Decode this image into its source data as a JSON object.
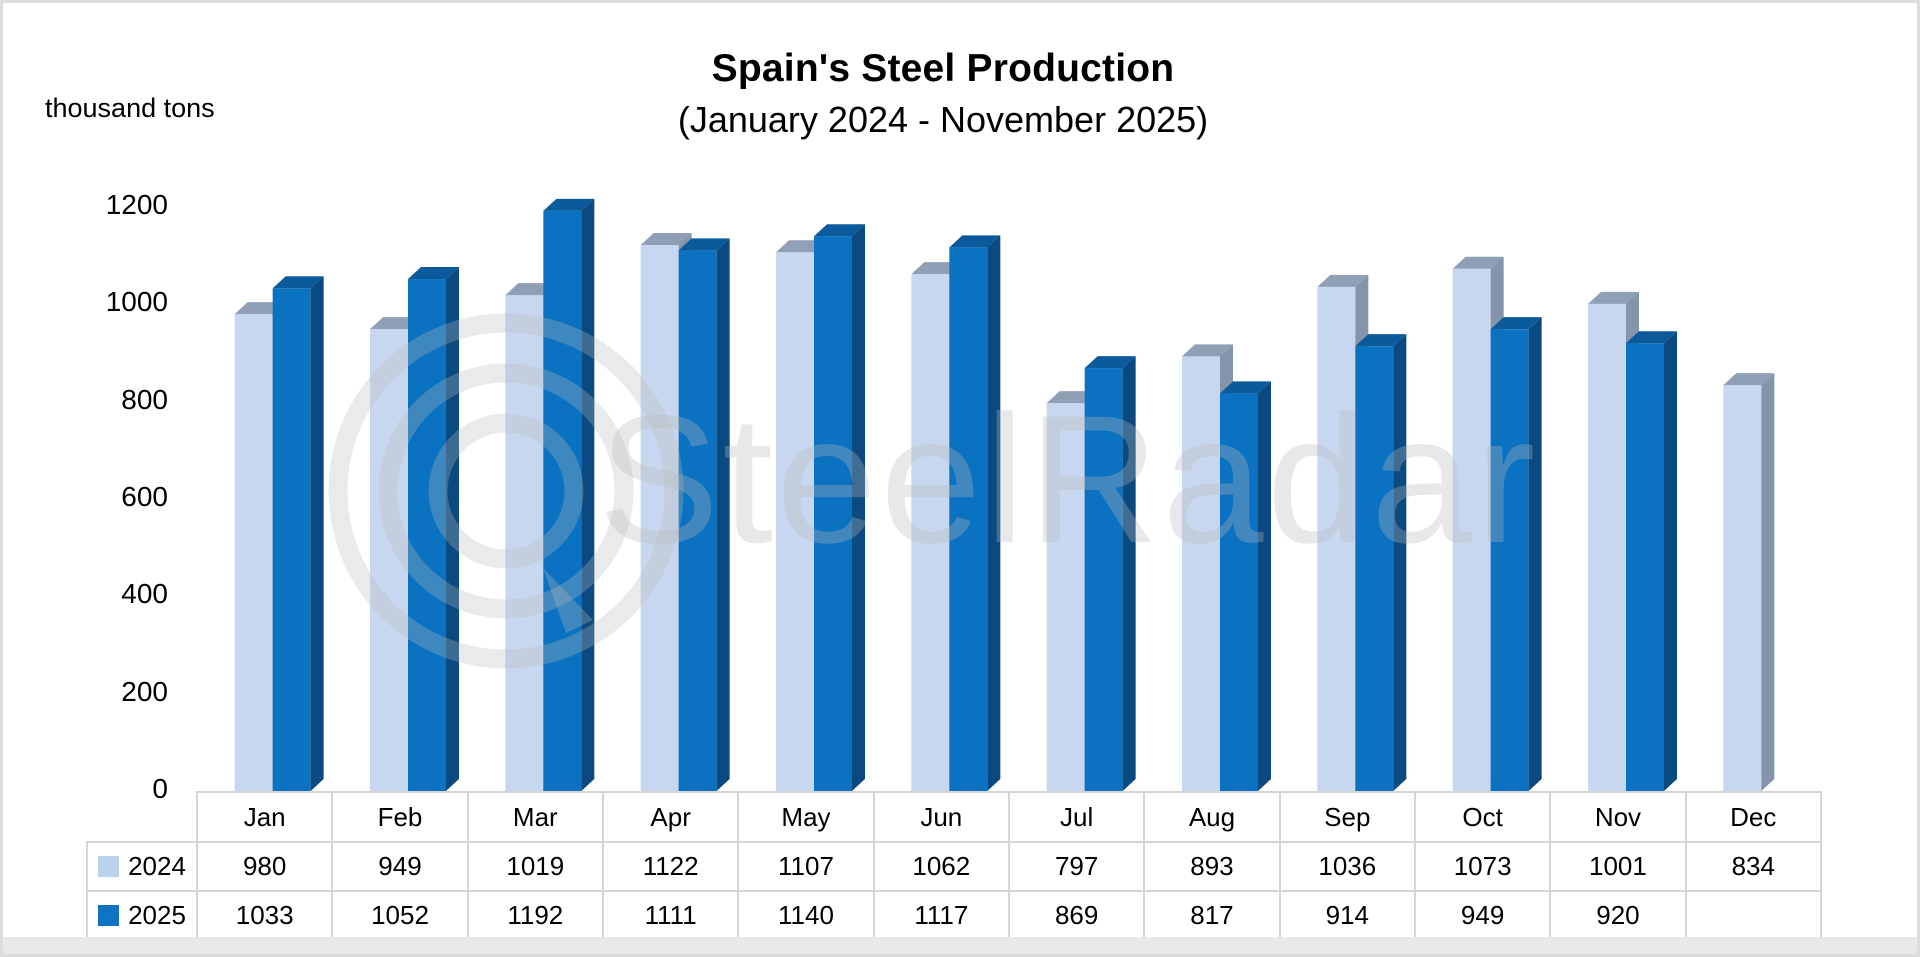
{
  "title": "Spain's Steel Production",
  "subtitle": "(January 2024 - November 2025)",
  "y_axis_unit": "thousand tons",
  "watermark": {
    "text": "SteelRadar",
    "logo": "radar-circles-logo"
  },
  "colors": {
    "series_2024_front": "#C8D7F0",
    "series_2024_top": "#8E9FB6",
    "series_2024_side": "#8494AB",
    "series_2025_front": "#0B72C2",
    "series_2025_top": "#0B5B9C",
    "series_2025_side": "#0A4A80",
    "legend_2024": "#BCD1EC",
    "legend_2025": "#1072C2",
    "table_border": "#D5D5D5",
    "footer_strip": "#E9E9E9",
    "watermark_gray": "rgba(185,185,185,0.32)"
  },
  "chart_data": {
    "type": "bar",
    "style": "3d-bars",
    "title": "Spain's Steel Production",
    "subtitle": "(January 2024 - November 2025)",
    "ylabel": "thousand tons",
    "xlabel": "",
    "ylim": [
      0,
      1200
    ],
    "y_ticks": [
      0,
      200,
      400,
      600,
      800,
      1000,
      1200
    ],
    "grid": false,
    "legend_position": "table-left",
    "categories": [
      "Jan",
      "Feb",
      "Mar",
      "Apr",
      "May",
      "Jun",
      "Jul",
      "Aug",
      "Sep",
      "Oct",
      "Nov",
      "Dec"
    ],
    "series": [
      {
        "name": "2024",
        "values": [
          980,
          949,
          1019,
          1122,
          1107,
          1062,
          797,
          893,
          1036,
          1073,
          1001,
          834
        ]
      },
      {
        "name": "2025",
        "values": [
          1033,
          1052,
          1192,
          1111,
          1140,
          1117,
          869,
          817,
          914,
          949,
          920,
          null
        ]
      }
    ]
  }
}
